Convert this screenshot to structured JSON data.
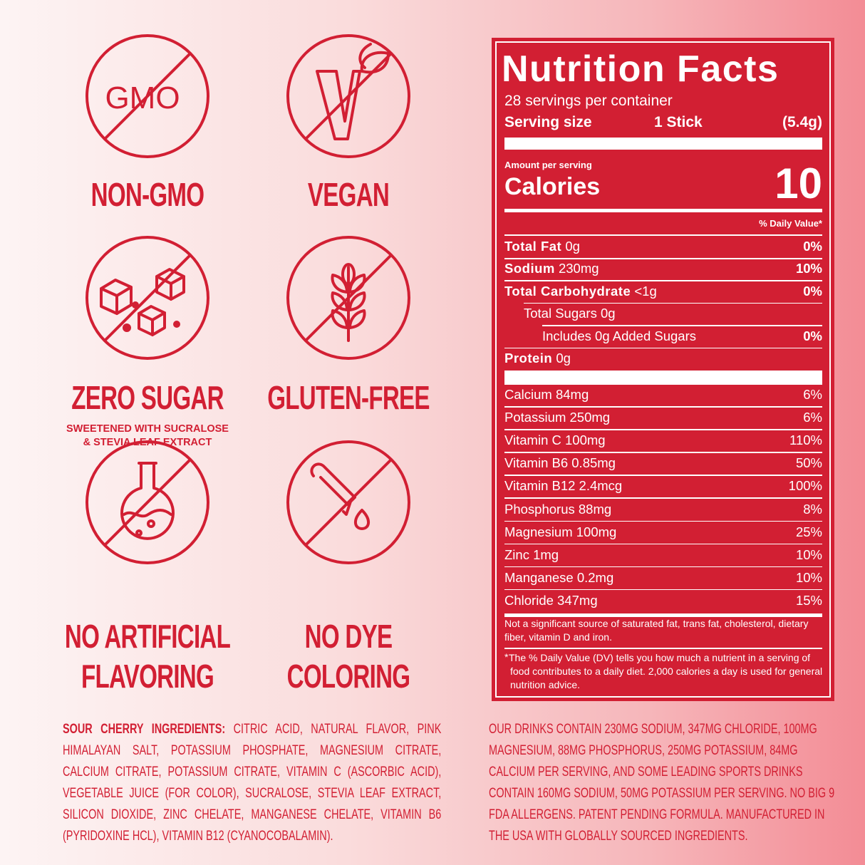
{
  "badges": [
    {
      "icon_text": "GMO",
      "label_lines": [
        "NON-GMO"
      ]
    },
    {
      "label_lines": [
        "VEGAN"
      ]
    },
    {
      "label_lines": [
        "ZERO SUGAR"
      ],
      "note_lines": [
        "SWEETENED WITH SUCRALOSE",
        "&  STEVIA LEAF EXTRACT"
      ]
    },
    {
      "label_lines": [
        "GLUTEN-FREE"
      ]
    },
    {
      "label_lines": [
        "NO ARTIFICIAL",
        "FLAVORING"
      ]
    },
    {
      "label_lines": [
        "NO DYE",
        "COLORING"
      ]
    }
  ],
  "ingredients": {
    "heading": "SOUR CHERRY INGREDIENTS:",
    "text": "CITRIC ACID, NATURAL FLAVOR, PINK HIMALAYAN SALT, POTASSIUM PHOSPHATE, MAGNESIUM CITRATE, CALCIUM CITRATE, POTASSIUM CITRATE, VITAMIN C (ASCORBIC ACID), VEGETABLE JUICE (FOR COLOR), SUCRALOSE, STEVIA LEAF EXTRACT, SILICON DIOXIDE, ZINC CHELATE, MANGANESE CHELATE, VITAMIN B6 (PYRIDOXINE HCL), VITAMIN B12 (CYANOCOBALAMIN)."
  },
  "claims": {
    "text": "OUR DRINKS CONTAIN 230MG SODIUM, 347MG CHLORIDE,  100MG MAGNESIUM, 88MG PHOSPHORUS, 250MG POTASSIUM, 84MG CALCIUM PER SERVING, AND SOME LEADING SPORTS DRINKS CONTAIN 160MG SODIUM, 50MG POTASSIUM PER SERVING. NO BIG 9 FDA ALLERGENS. PATENT PENDING FORMULA. MANUFACTURED IN THE USA WITH GLOBALLY SOURCED INGREDIENTS."
  },
  "nutrition": {
    "title": "Nutrition Facts",
    "servings": "28 servings per container",
    "serving_size_label": "Serving size",
    "serving_size": "1 Stick",
    "serving_weight": "(5.4g)",
    "amount_per_serving": "Amount per serving",
    "calories_label": "Calories",
    "calories": "10",
    "dv_header": "% Daily Value*",
    "nutrients": [
      {
        "name": "Total Fat",
        "amount": "0g",
        "dv": "0%"
      },
      {
        "name": "Sodium",
        "amount": "230mg",
        "dv": "10%"
      },
      {
        "name": "Total Carbohydrate",
        "amount": "<1g",
        "dv": "0%"
      },
      {
        "amount": "Total Sugars 0g"
      },
      {
        "amount": "Includes 0g Added Sugars",
        "dv": "0%"
      },
      {
        "name": "Protein",
        "amount": "0g"
      }
    ],
    "vitamins": [
      {
        "name": "Calcium 84mg",
        "dv": "6%"
      },
      {
        "name": "Potassium 250mg",
        "dv": "6%"
      },
      {
        "name": "Vitamin C 100mg",
        "dv": "110%"
      },
      {
        "name": "Vitamin B6 0.85mg",
        "dv": "50%"
      },
      {
        "name": "Vitamin B12 2.4mcg",
        "dv": "100%"
      },
      {
        "name": "Phosphorus 88mg",
        "dv": "8%"
      },
      {
        "name": "Magnesium 100mg",
        "dv": "25%"
      },
      {
        "name": "Zinc 1mg",
        "dv": "10%"
      },
      {
        "name": "Manganese 0.2mg",
        "dv": "10%"
      },
      {
        "name": "Chloride 347mg",
        "dv": "15%"
      }
    ],
    "footnote": "Not a significant source of saturated fat, trans fat, cholesterol, dietary fiber, vitamin D and iron.",
    "dv_footnote_mark": "*",
    "dv_footnote": "The % Daily Value (DV) tells you how much a nutrient in a serving of food contributes to a daily diet. 2,000 calories a day is used for general nutrition advice."
  }
}
